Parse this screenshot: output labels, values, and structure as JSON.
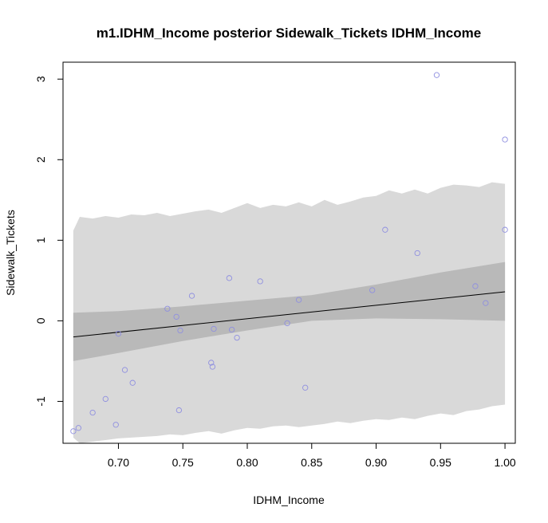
{
  "chart_data": {
    "type": "scatter",
    "title": "m1.IDHM_Income posterior Sidewalk_Tickets  IDHM_Income",
    "xlabel": "IDHM_Income",
    "ylabel": "Sidewalk_Tickets",
    "xlim": [
      0.657,
      1.008
    ],
    "ylim": [
      -1.52,
      3.21
    ],
    "x_ticks": [
      "0.70",
      "0.75",
      "0.80",
      "0.85",
      "0.90",
      "0.95",
      "1.00"
    ],
    "x_tick_values": [
      0.7,
      0.75,
      0.8,
      0.85,
      0.9,
      0.95,
      1.0
    ],
    "y_ticks": [
      "-1",
      "0",
      "1",
      "2",
      "3"
    ],
    "y_tick_values": [
      -1,
      0,
      1,
      2,
      3
    ],
    "points": [
      {
        "x": 0.665,
        "y": -1.37
      },
      {
        "x": 0.669,
        "y": -1.33
      },
      {
        "x": 0.68,
        "y": -1.14
      },
      {
        "x": 0.69,
        "y": -0.97
      },
      {
        "x": 0.698,
        "y": -1.29
      },
      {
        "x": 0.7,
        "y": -0.16
      },
      {
        "x": 0.705,
        "y": -0.61
      },
      {
        "x": 0.711,
        "y": -0.77
      },
      {
        "x": 0.738,
        "y": 0.15
      },
      {
        "x": 0.745,
        "y": 0.05
      },
      {
        "x": 0.747,
        "y": -1.11
      },
      {
        "x": 0.748,
        "y": -0.12
      },
      {
        "x": 0.757,
        "y": 0.31
      },
      {
        "x": 0.772,
        "y": -0.52
      },
      {
        "x": 0.773,
        "y": -0.57
      },
      {
        "x": 0.774,
        "y": -0.1
      },
      {
        "x": 0.786,
        "y": 0.53
      },
      {
        "x": 0.788,
        "y": -0.11
      },
      {
        "x": 0.792,
        "y": -0.21
      },
      {
        "x": 0.81,
        "y": 0.49
      },
      {
        "x": 0.831,
        "y": -0.03
      },
      {
        "x": 0.84,
        "y": 0.26
      },
      {
        "x": 0.845,
        "y": -0.83
      },
      {
        "x": 0.897,
        "y": 0.38
      },
      {
        "x": 0.907,
        "y": 1.13
      },
      {
        "x": 0.932,
        "y": 0.84
      },
      {
        "x": 0.947,
        "y": 3.05
      },
      {
        "x": 0.977,
        "y": 0.43
      },
      {
        "x": 0.985,
        "y": 0.22
      },
      {
        "x": 1.0,
        "y": 2.25
      },
      {
        "x": 1.0,
        "y": 1.13
      }
    ],
    "mean_line": {
      "x": [
        0.665,
        1.0
      ],
      "y": [
        -0.2,
        0.36
      ]
    },
    "mean_interval": {
      "x": [
        0.665,
        0.7,
        0.75,
        0.8,
        0.85,
        0.9,
        0.95,
        1.0
      ],
      "lower": [
        -0.5,
        -0.4,
        -0.25,
        -0.12,
        0.0,
        0.03,
        0.02,
        0.0
      ],
      "upper": [
        0.1,
        0.12,
        0.18,
        0.25,
        0.32,
        0.45,
        0.6,
        0.73
      ]
    },
    "prediction_interval": {
      "x": [
        0.665,
        0.67,
        0.68,
        0.69,
        0.7,
        0.71,
        0.72,
        0.73,
        0.74,
        0.75,
        0.76,
        0.77,
        0.78,
        0.79,
        0.8,
        0.81,
        0.82,
        0.83,
        0.84,
        0.85,
        0.86,
        0.87,
        0.88,
        0.89,
        0.9,
        0.91,
        0.92,
        0.93,
        0.94,
        0.95,
        0.96,
        0.97,
        0.98,
        0.99,
        1.0
      ],
      "lower": [
        -1.45,
        -1.52,
        -1.5,
        -1.48,
        -1.46,
        -1.45,
        -1.44,
        -1.43,
        -1.41,
        -1.42,
        -1.39,
        -1.37,
        -1.4,
        -1.36,
        -1.33,
        -1.34,
        -1.31,
        -1.3,
        -1.32,
        -1.3,
        -1.28,
        -1.25,
        -1.27,
        -1.24,
        -1.22,
        -1.23,
        -1.2,
        -1.22,
        -1.18,
        -1.15,
        -1.17,
        -1.12,
        -1.1,
        -1.06,
        -1.04
      ],
      "upper": [
        1.12,
        1.29,
        1.27,
        1.3,
        1.28,
        1.32,
        1.31,
        1.34,
        1.3,
        1.33,
        1.36,
        1.38,
        1.34,
        1.4,
        1.46,
        1.4,
        1.44,
        1.42,
        1.47,
        1.42,
        1.5,
        1.44,
        1.48,
        1.53,
        1.55,
        1.62,
        1.58,
        1.63,
        1.58,
        1.65,
        1.69,
        1.68,
        1.66,
        1.72,
        1.7
      ]
    },
    "colors": {
      "prediction_band": "#d9d9d9",
      "mean_band": "#b9b9b9",
      "mean_line": "#000000",
      "points": "#8f8fe0",
      "frame": "#000000"
    },
    "grid": false,
    "legend": "none"
  }
}
